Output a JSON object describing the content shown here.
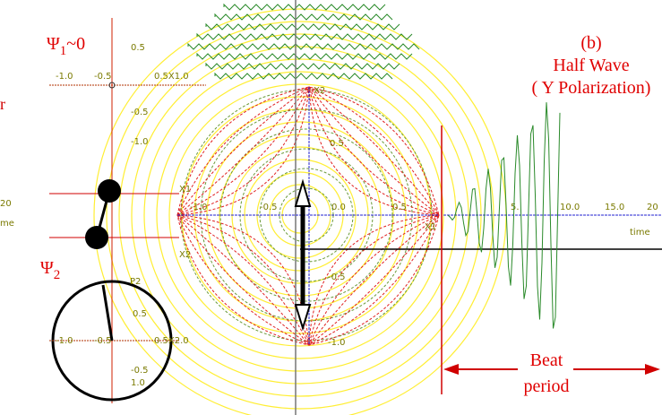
{
  "heading": {
    "panel": "(b)",
    "line1": "Half Wave",
    "line2": "( Y Polarization)"
  },
  "psi1": {
    "symbol": "Ψ",
    "subscript": "1",
    "suffix": "~0"
  },
  "psi2": {
    "symbol": "Ψ",
    "subscript": "2"
  },
  "beat": {
    "line1": "Beat",
    "line2": "period"
  },
  "edge_fragments": [
    "r",
    "20",
    "me"
  ],
  "top_plot": {
    "xlabels": [
      "-1.0",
      "-0.5",
      "0.5X1.0"
    ],
    "ylabels": [
      "0.5",
      "-0.5",
      "-1.0"
    ]
  },
  "oscillators": {
    "x1": "X1",
    "x2": "X2"
  },
  "bottom_plot": {
    "point": "P2",
    "top": "0.5",
    "xlabels": [
      "-1.0",
      "-0.5",
      "0.5X2.0"
    ],
    "ylabels": [
      "-0.5",
      "1.0"
    ]
  },
  "center_plot": {
    "xlabels": [
      "-1.0",
      "-0.5",
      "0.0",
      "0.5"
    ],
    "x_axis": "X1",
    "y_axis": "X2",
    "ylabels": [
      "0.5",
      "-0.5",
      "-1.0"
    ]
  },
  "time_plot": {
    "xlabels": [
      "5.",
      "10.0",
      "15.0",
      "20"
    ],
    "axis": "time"
  }
}
